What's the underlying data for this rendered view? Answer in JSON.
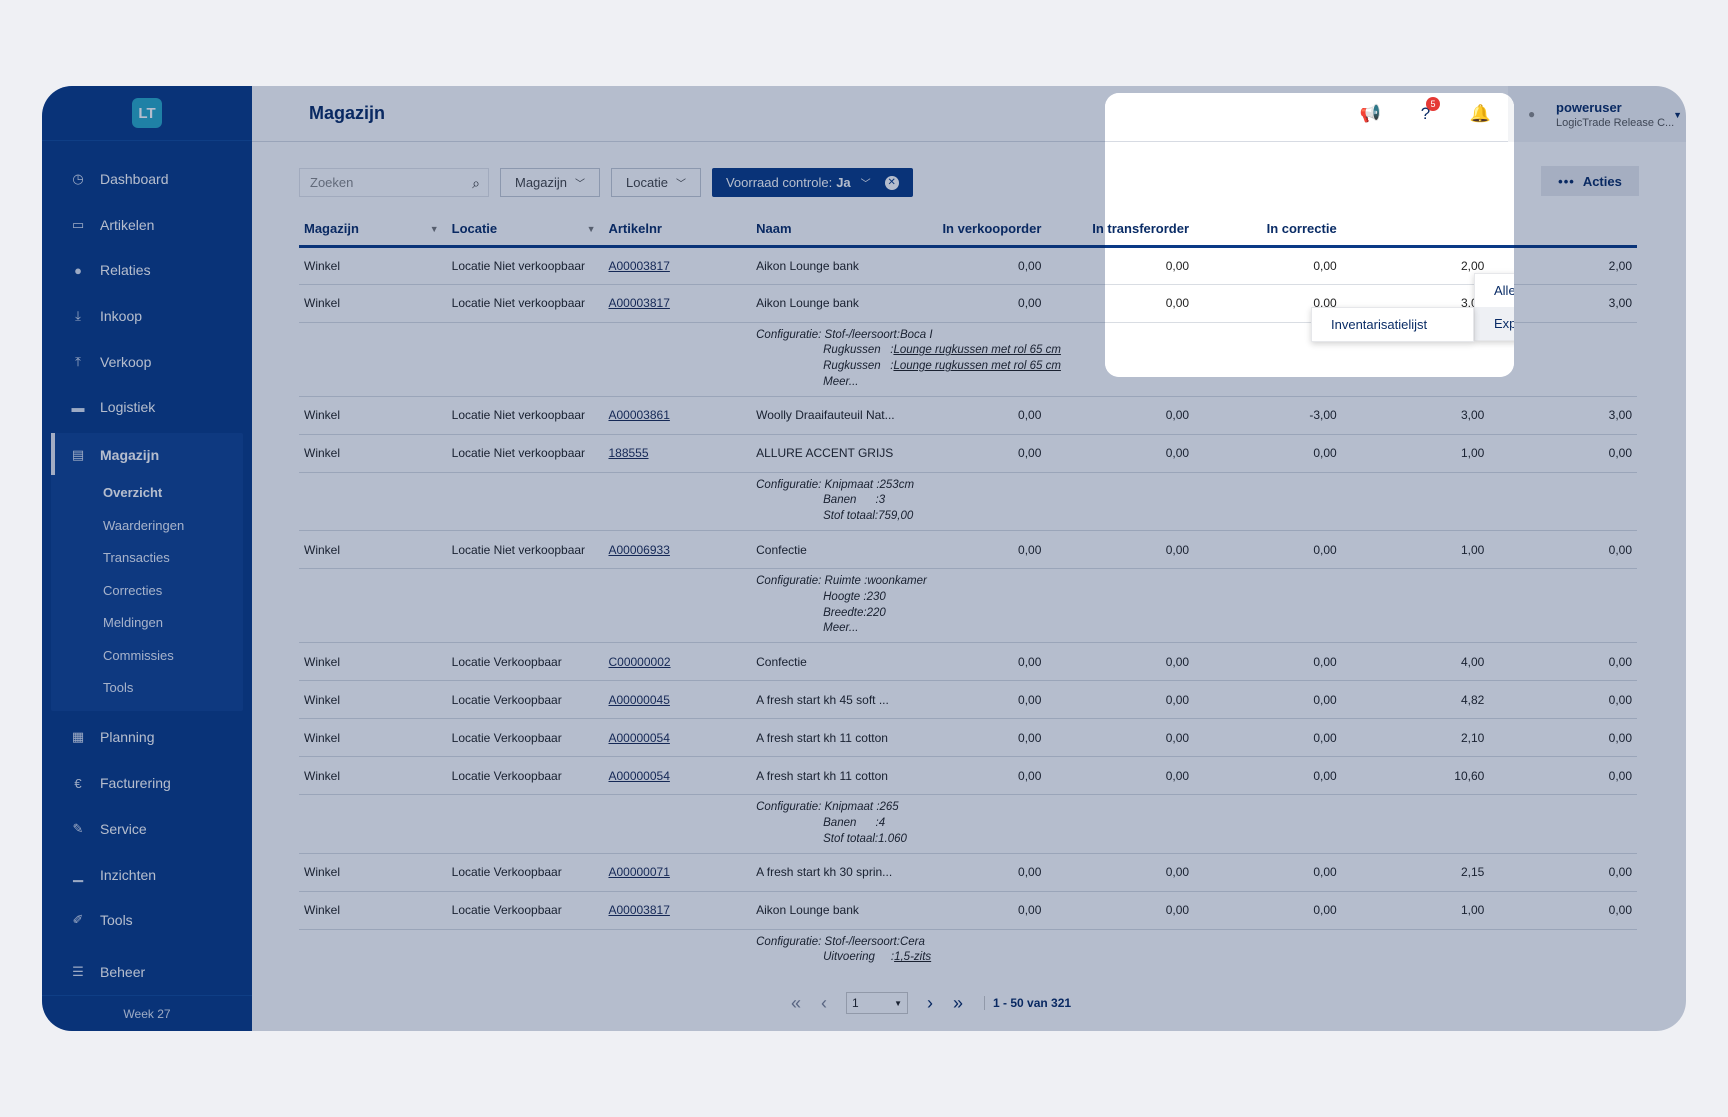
{
  "sidebar": {
    "logo": "LT",
    "items": [
      {
        "label": "Dashboard",
        "icon": "dashboard-icon",
        "glyph": "◷"
      },
      {
        "label": "Artikelen",
        "icon": "inbox-icon",
        "glyph": "▭"
      },
      {
        "label": "Relaties",
        "icon": "user-icon",
        "glyph": "●"
      },
      {
        "label": "Inkoop",
        "icon": "download-icon",
        "glyph": "⤓"
      },
      {
        "label": "Verkoop",
        "icon": "upload-icon",
        "glyph": "⤒"
      },
      {
        "label": "Logistiek",
        "icon": "truck-icon",
        "glyph": "▬"
      }
    ],
    "active": {
      "label": "Magazijn",
      "icon": "warehouse-icon",
      "glyph": "▤"
    },
    "sub_items": [
      "Overzicht",
      "Waarderingen",
      "Transacties",
      "Correcties",
      "Meldingen",
      "Commissies",
      "Tools"
    ],
    "items_after": [
      {
        "label": "Planning",
        "icon": "calendar-icon",
        "glyph": "▦"
      },
      {
        "label": "Facturering",
        "icon": "euro-icon",
        "glyph": "€"
      },
      {
        "label": "Service",
        "icon": "wrench-icon",
        "glyph": "✎"
      },
      {
        "label": "Inzichten",
        "icon": "bar-chart-icon",
        "glyph": "▁"
      },
      {
        "label": "Tools",
        "icon": "magic-wand-icon",
        "glyph": "✐"
      },
      {
        "label": "Beheer",
        "icon": "sliders-icon",
        "glyph": "☰"
      }
    ],
    "week": "Week 27"
  },
  "header": {
    "title": "Magazijn",
    "help_badge": "5",
    "user_name": "poweruser",
    "user_sub": "LogicTrade Release C..."
  },
  "filters": {
    "search_placeholder": "Zoeken",
    "magazijn": "Magazijn",
    "locatie": "Locatie",
    "chip_label": "Voorraad controle:",
    "chip_value": "Ja"
  },
  "acties_label": "Acties",
  "menu": {
    "items": [
      "Alle voorraad wissen",
      "Exporteren"
    ],
    "submenu": [
      "Inventarisatielijst"
    ]
  },
  "table": {
    "columns": [
      "Magazijn",
      "Locatie",
      "Artikelnr",
      "Naam",
      "In verkooporder",
      "In transferorder",
      "In correctie",
      "",
      ""
    ],
    "rows": [
      {
        "type": "data",
        "cells": [
          "Winkel",
          "Locatie Niet verkoopbaar",
          "A00003817",
          "Aikon Lounge bank",
          "0,00",
          "0,00",
          "0,00",
          "2,00",
          "2,00"
        ]
      },
      {
        "type": "data",
        "cells": [
          "Winkel",
          "Locatie Niet verkoopbaar",
          "A00003817",
          "Aikon Lounge bank",
          "0,00",
          "0,00",
          "0,00",
          "3,00",
          "3,00"
        ]
      },
      {
        "type": "config",
        "lines": [
          {
            "prefix": "Configuratie: ",
            "key": "Stof-/leersoort",
            "sep": ":",
            "val": "Boca I",
            "ul": false
          },
          {
            "prefix": "",
            "key": "Rugkussen",
            "sep": "   :",
            "val": "Lounge rugkussen met rol 65 cm",
            "ul": true
          },
          {
            "prefix": "",
            "key": "Rugkussen",
            "sep": "   :",
            "val": "Lounge rugkussen met rol 65 cm",
            "ul": true
          },
          {
            "prefix": "",
            "key": "Meer...",
            "sep": "",
            "val": "",
            "ul": false
          }
        ]
      },
      {
        "type": "data",
        "cells": [
          "Winkel",
          "Locatie Niet verkoopbaar",
          "A00003861",
          "Woolly Draaifauteuil Nat...",
          "0,00",
          "0,00",
          "-3,00",
          "3,00",
          "3,00"
        ]
      },
      {
        "type": "data",
        "cells": [
          "Winkel",
          "Locatie Niet verkoopbaar",
          "188555",
          "ALLURE ACCENT GRIJS",
          "0,00",
          "0,00",
          "0,00",
          "1,00",
          "0,00"
        ]
      },
      {
        "type": "config",
        "lines": [
          {
            "prefix": "Configuratie: ",
            "key": "Knipmaat",
            "sep": " :",
            "val": "253cm",
            "ul": false
          },
          {
            "prefix": "",
            "key": "Banen",
            "sep": "      :",
            "val": "3",
            "ul": false
          },
          {
            "prefix": "",
            "key": "Stof totaal",
            "sep": ":",
            "val": "759,00",
            "ul": false
          }
        ]
      },
      {
        "type": "data",
        "cells": [
          "Winkel",
          "Locatie Niet verkoopbaar",
          "A00006933",
          "Confectie",
          "0,00",
          "0,00",
          "0,00",
          "1,00",
          "0,00"
        ]
      },
      {
        "type": "config",
        "lines": [
          {
            "prefix": "Configuratie: ",
            "key": "Ruimte",
            "sep": " :",
            "val": "woonkamer",
            "ul": false
          },
          {
            "prefix": "",
            "key": "Hoogte",
            "sep": " :",
            "val": "230",
            "ul": false
          },
          {
            "prefix": "",
            "key": "Breedte",
            "sep": ":",
            "val": "220",
            "ul": false
          },
          {
            "prefix": "",
            "key": "Meer...",
            "sep": "",
            "val": "",
            "ul": false
          }
        ]
      },
      {
        "type": "data",
        "cells": [
          "Winkel",
          "Locatie Verkoopbaar",
          "C00000002",
          "Confectie",
          "0,00",
          "0,00",
          "0,00",
          "4,00",
          "0,00"
        ]
      },
      {
        "type": "data",
        "cells": [
          "Winkel",
          "Locatie Verkoopbaar",
          "A00000045",
          "A fresh start kh 45 soft ...",
          "0,00",
          "0,00",
          "0,00",
          "4,82",
          "0,00"
        ]
      },
      {
        "type": "data",
        "cells": [
          "Winkel",
          "Locatie Verkoopbaar",
          "A00000054",
          "A fresh start kh 11 cotton",
          "0,00",
          "0,00",
          "0,00",
          "2,10",
          "0,00"
        ]
      },
      {
        "type": "data",
        "cells": [
          "Winkel",
          "Locatie Verkoopbaar",
          "A00000054",
          "A fresh start kh 11 cotton",
          "0,00",
          "0,00",
          "0,00",
          "10,60",
          "0,00"
        ]
      },
      {
        "type": "config",
        "lines": [
          {
            "prefix": "Configuratie: ",
            "key": "Knipmaat",
            "sep": " :",
            "val": "265",
            "ul": false
          },
          {
            "prefix": "",
            "key": "Banen",
            "sep": "      :",
            "val": "4",
            "ul": false
          },
          {
            "prefix": "",
            "key": "Stof totaal",
            "sep": ":",
            "val": "1.060",
            "ul": false
          }
        ]
      },
      {
        "type": "data",
        "cells": [
          "Winkel",
          "Locatie Verkoopbaar",
          "A00000071",
          "A fresh start kh 30 sprin...",
          "0,00",
          "0,00",
          "0,00",
          "2,15",
          "0,00"
        ]
      },
      {
        "type": "data",
        "cells": [
          "Winkel",
          "Locatie Verkoopbaar",
          "A00003817",
          "Aikon Lounge bank",
          "0,00",
          "0,00",
          "0,00",
          "1,00",
          "0,00"
        ]
      },
      {
        "type": "config",
        "lines": [
          {
            "prefix": "Configuratie: ",
            "key": "Stof-/leersoort",
            "sep": ":",
            "val": "Cera",
            "ul": false
          },
          {
            "prefix": "",
            "key": "Uitvoering",
            "sep": "     :",
            "val": "1,5-zits",
            "ul": true
          }
        ]
      }
    ]
  },
  "pagination": {
    "page": "1",
    "count": "1 - 50 van 321"
  }
}
